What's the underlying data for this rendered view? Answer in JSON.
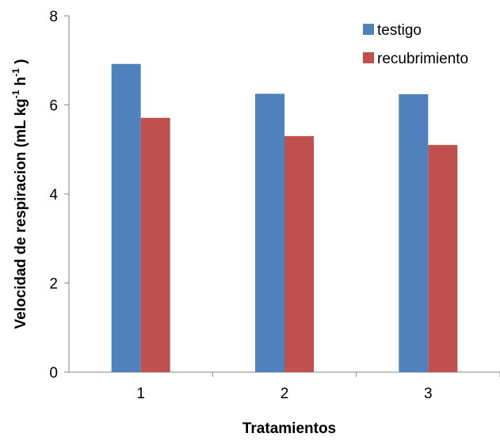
{
  "chart_data": {
    "type": "bar",
    "categories": [
      "1",
      "2",
      "3"
    ],
    "series": [
      {
        "name": "testigo",
        "values": [
          6.92,
          6.25,
          6.24
        ],
        "color": "#4f81bd"
      },
      {
        "name": "recubrimiento",
        "values": [
          5.71,
          5.3,
          5.1
        ],
        "color": "#c0504d"
      }
    ],
    "xlabel": "Tratamientos",
    "ylabel": {
      "main": "Velocidad de respiracion (mL kg",
      "sup1": "-1",
      "mid": " h",
      "sup2": "-1",
      "end": " )"
    },
    "ylim": [
      0,
      8
    ],
    "yticks": [
      "0",
      "2",
      "4",
      "6",
      "8"
    ],
    "grid": false,
    "legend_position": "top-right"
  }
}
